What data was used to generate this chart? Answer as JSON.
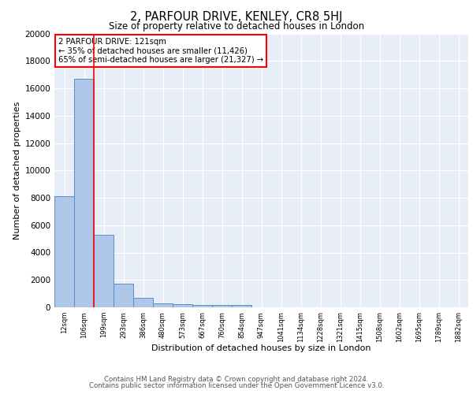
{
  "title": "2, PARFOUR DRIVE, KENLEY, CR8 5HJ",
  "subtitle": "Size of property relative to detached houses in London",
  "xlabel": "Distribution of detached houses by size in London",
  "ylabel": "Number of detached properties",
  "annotation_title": "2 PARFOUR DRIVE: 121sqm",
  "annotation_line1": "← 35% of detached houses are smaller (11,426)",
  "annotation_line2": "65% of semi-detached houses are larger (21,327) →",
  "bin_labels": [
    "12sqm",
    "106sqm",
    "199sqm",
    "293sqm",
    "386sqm",
    "480sqm",
    "573sqm",
    "667sqm",
    "760sqm",
    "854sqm",
    "947sqm",
    "1041sqm",
    "1134sqm",
    "1228sqm",
    "1321sqm",
    "1415sqm",
    "1508sqm",
    "1602sqm",
    "1695sqm",
    "1789sqm",
    "1882sqm"
  ],
  "bar_heights": [
    8100,
    16700,
    5300,
    1750,
    700,
    300,
    230,
    200,
    175,
    150,
    0,
    0,
    0,
    0,
    0,
    0,
    0,
    0,
    0,
    0,
    0
  ],
  "red_line_index": 1,
  "bar_color": "#aec6e8",
  "bar_edge_color": "#5b8fc9",
  "ylim": [
    0,
    20000
  ],
  "yticks": [
    0,
    2000,
    4000,
    6000,
    8000,
    10000,
    12000,
    14000,
    16000,
    18000,
    20000
  ],
  "background_color": "#e8eef8",
  "grid_color": "#ffffff",
  "footer_line1": "Contains HM Land Registry data © Crown copyright and database right 2024.",
  "footer_line2": "Contains public sector information licensed under the Open Government Licence v3.0."
}
